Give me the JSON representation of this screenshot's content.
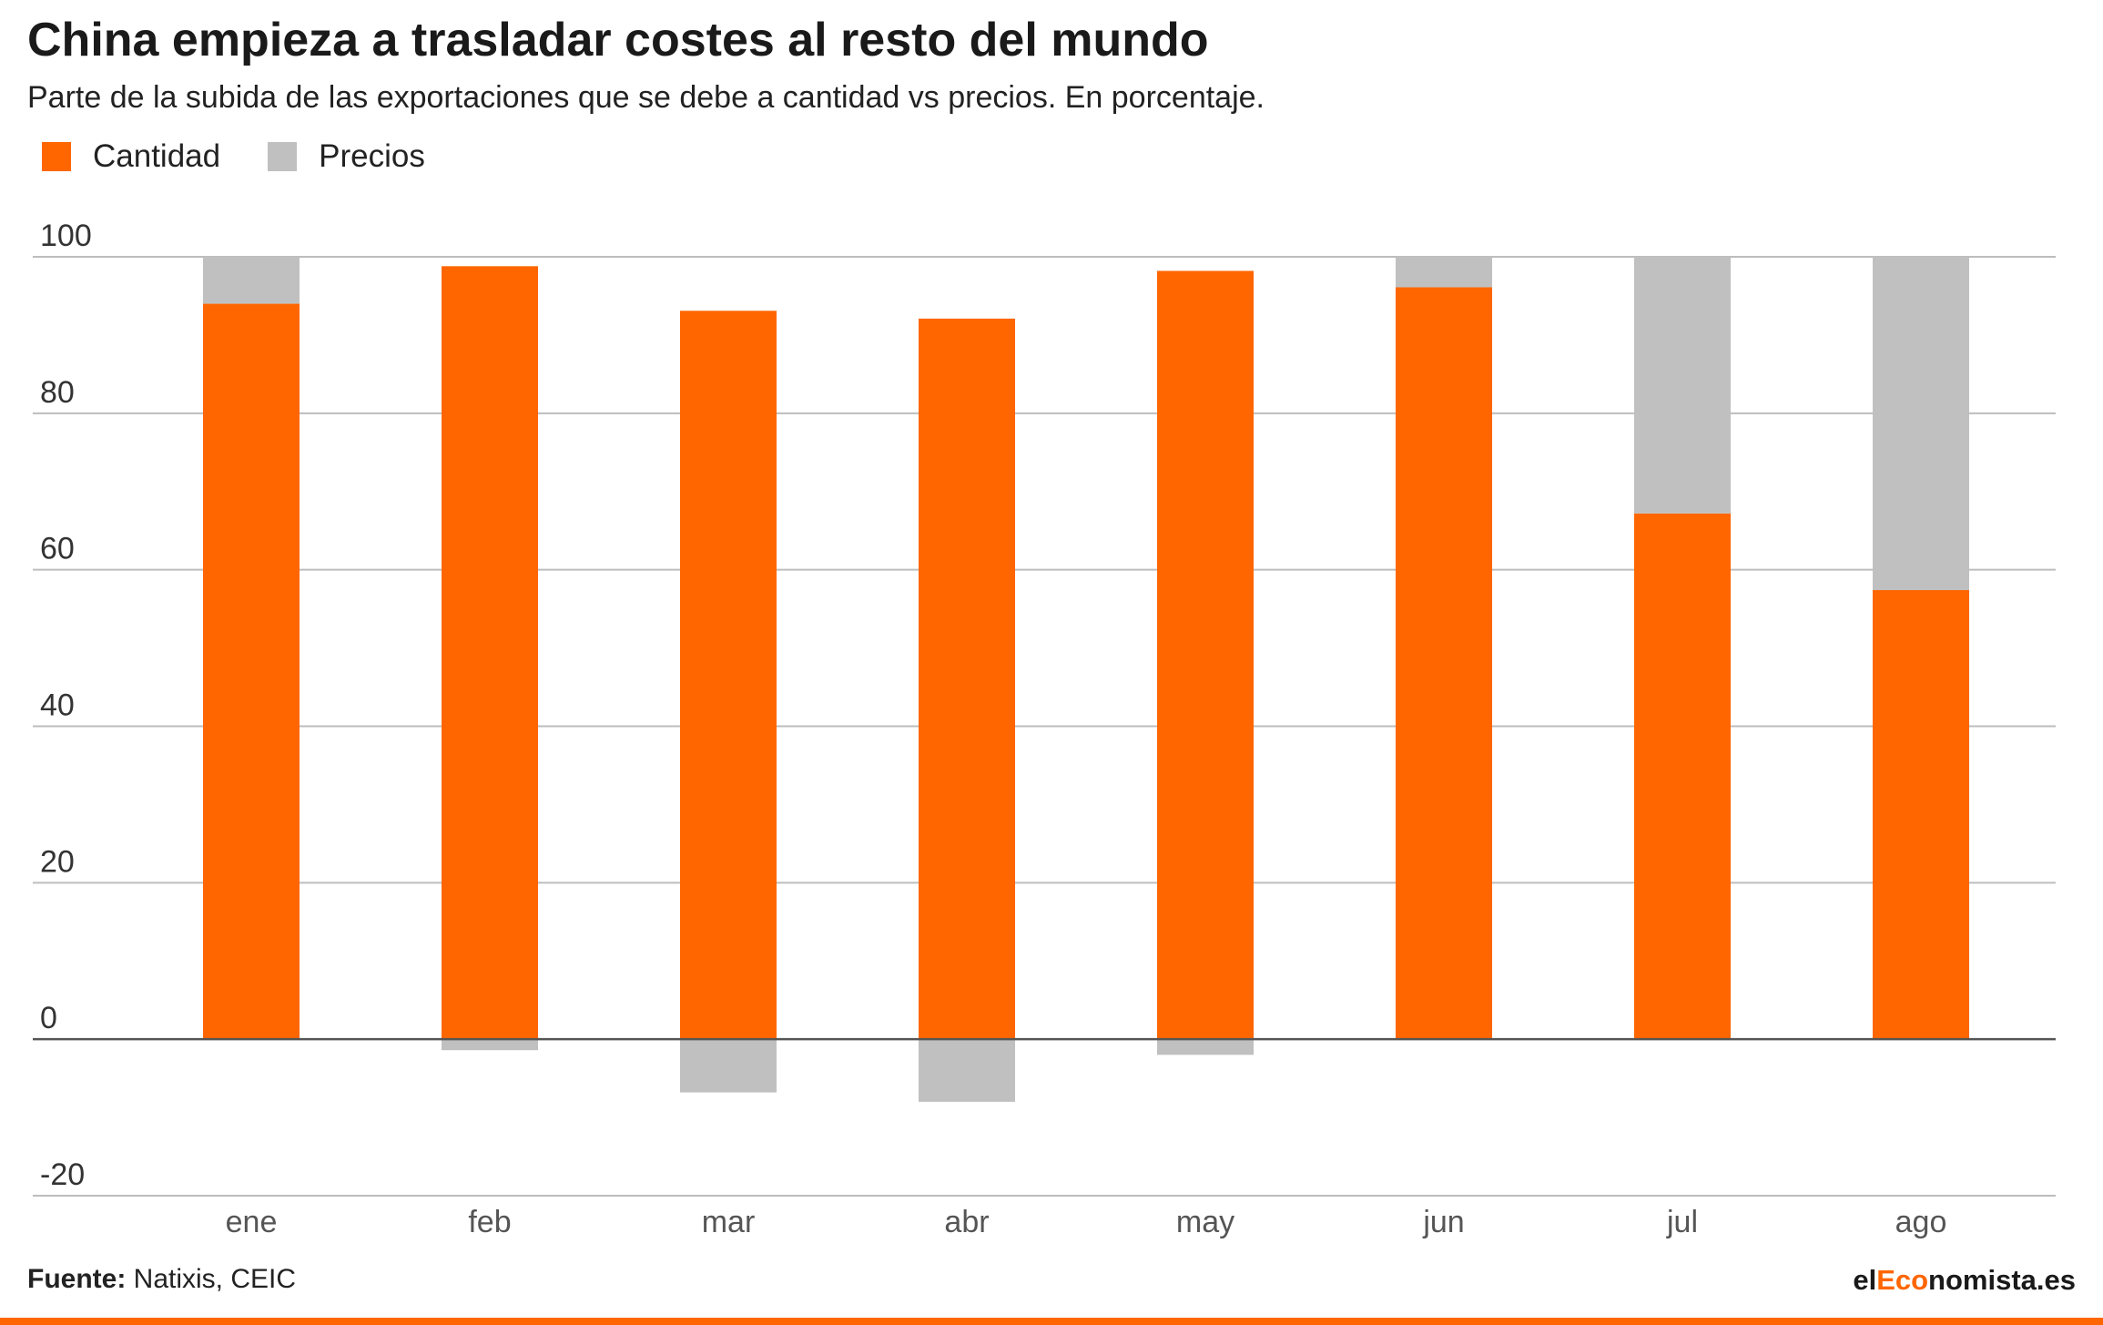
{
  "header": {
    "title": "China empieza a trasladar costes al resto del mundo",
    "subtitle": "Parte de la subida de las exportaciones que se debe a cantidad vs precios. En porcentaje."
  },
  "colors": {
    "cantidad": "#ff6600",
    "precios": "#c0c0c0",
    "grid": "#bdbdbd",
    "axis": "#555555",
    "accent": "#ff6600"
  },
  "chart_data": {
    "type": "bar",
    "stacked": true,
    "categories": [
      "ene",
      "feb",
      "mar",
      "abr",
      "may",
      "jun",
      "jul",
      "ago"
    ],
    "series": [
      {
        "name": "Cantidad",
        "values": [
          94,
          98.8,
          93.1,
          92.1,
          98.2,
          96.1,
          67.2,
          57.4
        ]
      },
      {
        "name": "Precios",
        "values": [
          6,
          -1.4,
          -6.8,
          -8,
          -2,
          3.9,
          32.8,
          42.6
        ]
      }
    ],
    "yticks": [
      100,
      80,
      60,
      40,
      20,
      0,
      -20
    ],
    "ylim": [
      -20,
      100
    ],
    "grid": true,
    "legend": "top-left"
  },
  "footer": {
    "source_label": "Fuente:",
    "source_text": "Natixis, CEIC",
    "brand_prefix": "el",
    "brand_highlight": "Eco",
    "brand_suffix": "nomista.es"
  }
}
